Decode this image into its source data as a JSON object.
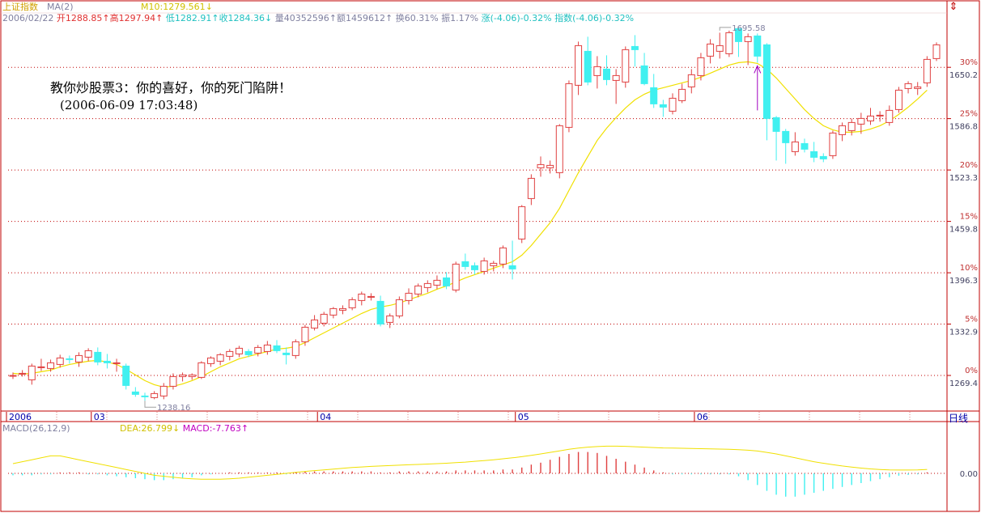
{
  "window": {
    "index_name": "上证指数",
    "indicator_main": "MA(2)",
    "ma_label": "M10:1279.561",
    "ma_arrow": "↓",
    "flip_icon": "flip-arrows-icon",
    "period_tab": "日线"
  },
  "quote_bar": {
    "date": "2006/02/22",
    "open": "开1288.85↑",
    "high": "高1297.94↑",
    "low": "低1282.91↑",
    "close": "收1284.36↓",
    "volume": "量40352596↑",
    "amount": "额1459612↑",
    "turnover": "换60.31%",
    "amplitude": "振1.17%",
    "change": "涨(-4.06)-0.32%",
    "index_change": "指数(-4.06)-0.32%"
  },
  "annotation": {
    "line1": "教你炒股票3：你的喜好，你的死门陷阱！",
    "line2": "(2006-06-09 17:03:48)"
  },
  "macd_bar": {
    "name": "MACD(26,12,9)",
    "dea": "DEA:26.799↓",
    "macd": "MACD:-7.763↑",
    "zero_label": "0.00"
  },
  "colors": {
    "up": "#e04040",
    "down": "#40f0f0",
    "ma_line": "#f0e000",
    "grid": "#c00000",
    "macd_pos": "#e04040",
    "macd_neg": "#40f0f0",
    "arrow": "#a000c0"
  },
  "chart_data": {
    "type": "candlestick",
    "title": "上证指数",
    "y_axis_labels": [
      1269.4,
      1332.9,
      1396.3,
      1459.8,
      1523.3,
      1586.8,
      1650.2
    ],
    "percent_labels": [
      "0%",
      "5%",
      "10%",
      "15%",
      "20%",
      "25%",
      "30%"
    ],
    "ylim": [
      1238,
      1712
    ],
    "x_axis_labels": [
      {
        "label": "2006",
        "index": 0
      },
      {
        "label": "03",
        "index": 9
      },
      {
        "label": "04",
        "index": 33
      },
      {
        "label": "05",
        "index": 54
      },
      {
        "label": "06",
        "index": 73
      }
    ],
    "annotations": [
      {
        "text": "1238.16",
        "index": 14,
        "price": 1238.16,
        "pos": "low"
      },
      {
        "text": "1695.58",
        "index": 75,
        "price": 1695.58,
        "pos": "high"
      }
    ],
    "arrow_marker_index": 79,
    "ohlc": [
      [
        1269.4,
        1273,
        1265,
        1269.4
      ],
      [
        1272,
        1276,
        1268,
        1272
      ],
      [
        1264,
        1284,
        1258,
        1281
      ],
      [
        1279,
        1290,
        1275,
        1280
      ],
      [
        1278,
        1289,
        1274,
        1285
      ],
      [
        1283,
        1295,
        1279,
        1291
      ],
      [
        1290,
        1294,
        1284,
        1289
      ],
      [
        1286,
        1298,
        1280,
        1294
      ],
      [
        1292,
        1303,
        1287,
        1300
      ],
      [
        1298,
        1304,
        1282,
        1286
      ],
      [
        1287,
        1296,
        1278,
        1285
      ],
      [
        1284,
        1290,
        1274,
        1285
      ],
      [
        1281,
        1284,
        1252,
        1257
      ],
      [
        1249,
        1255,
        1243,
        1246
      ],
      [
        1244,
        1248,
        1238.16,
        1243
      ],
      [
        1242,
        1250,
        1240,
        1247
      ],
      [
        1244,
        1260,
        1240,
        1256
      ],
      [
        1256,
        1272,
        1252,
        1268
      ],
      [
        1268,
        1273,
        1262,
        1270
      ],
      [
        1268,
        1272,
        1264,
        1270
      ],
      [
        1267,
        1287,
        1265,
        1285
      ],
      [
        1284,
        1293,
        1280,
        1291
      ],
      [
        1287,
        1297,
        1282,
        1295
      ],
      [
        1293,
        1302,
        1288,
        1299
      ],
      [
        1296,
        1306,
        1292,
        1303
      ],
      [
        1299,
        1302,
        1292,
        1295
      ],
      [
        1297,
        1307,
        1293,
        1304
      ],
      [
        1299,
        1312,
        1295,
        1307
      ],
      [
        1306,
        1313,
        1297,
        1300
      ],
      [
        1297,
        1304,
        1283,
        1295
      ],
      [
        1294,
        1314,
        1290,
        1311
      ],
      [
        1311,
        1332,
        1306,
        1329
      ],
      [
        1328,
        1344,
        1325,
        1338
      ],
      [
        1334,
        1348,
        1330,
        1345
      ],
      [
        1344,
        1354,
        1340,
        1352
      ],
      [
        1350,
        1356,
        1345,
        1352
      ],
      [
        1353,
        1366,
        1350,
        1363
      ],
      [
        1362,
        1373,
        1356,
        1370
      ],
      [
        1367,
        1371,
        1362,
        1367
      ],
      [
        1361,
        1368,
        1330,
        1333
      ],
      [
        1335,
        1346,
        1328,
        1343
      ],
      [
        1343,
        1367,
        1340,
        1363
      ],
      [
        1362,
        1377,
        1357,
        1371
      ],
      [
        1370,
        1383,
        1366,
        1380
      ],
      [
        1378,
        1387,
        1372,
        1383
      ],
      [
        1381,
        1393,
        1376,
        1387
      ],
      [
        1390,
        1397,
        1376,
        1380
      ],
      [
        1375,
        1410,
        1372,
        1407
      ],
      [
        1410,
        1420,
        1400,
        1404
      ],
      [
        1405,
        1409,
        1394,
        1400
      ],
      [
        1398,
        1415,
        1394,
        1411
      ],
      [
        1405,
        1411,
        1398,
        1408
      ],
      [
        1407,
        1430,
        1402,
        1427
      ],
      [
        1405,
        1436,
        1388,
        1401
      ],
      [
        1438,
        1480,
        1433,
        1478
      ],
      [
        1488,
        1518,
        1480,
        1513
      ],
      [
        1526,
        1540,
        1515,
        1530
      ],
      [
        1526,
        1535,
        1519,
        1529
      ],
      [
        1520,
        1580,
        1513,
        1578
      ],
      [
        1576,
        1634,
        1570,
        1630
      ],
      [
        1628,
        1682,
        1616,
        1677
      ],
      [
        1670,
        1688,
        1628,
        1632
      ],
      [
        1640,
        1664,
        1624,
        1651
      ],
      [
        1648,
        1665,
        1628,
        1635
      ],
      [
        1634,
        1648,
        1605,
        1640
      ],
      [
        1632,
        1676,
        1625,
        1672
      ],
      [
        1676,
        1690,
        1651,
        1672
      ],
      [
        1652,
        1668,
        1628,
        1630
      ],
      [
        1625,
        1642,
        1600,
        1605
      ],
      [
        1604,
        1610,
        1589,
        1601
      ],
      [
        1596,
        1618,
        1592,
        1612
      ],
      [
        1609,
        1630,
        1606,
        1623
      ],
      [
        1626,
        1648,
        1618,
        1641
      ],
      [
        1640,
        1668,
        1634,
        1662
      ],
      [
        1664,
        1685,
        1655,
        1679
      ],
      [
        1670,
        1693,
        1661,
        1677
      ],
      [
        1667,
        1695.58,
        1663,
        1693
      ],
      [
        1698,
        1700,
        1663,
        1682
      ],
      [
        1682,
        1692,
        1653,
        1688
      ],
      [
        1689,
        1692,
        1656,
        1664
      ],
      [
        1678,
        1680,
        1560,
        1587
      ],
      [
        1588,
        1590,
        1535,
        1571
      ],
      [
        1571,
        1574,
        1531,
        1557
      ],
      [
        1546,
        1570,
        1541,
        1558
      ],
      [
        1556,
        1562,
        1545,
        1549
      ],
      [
        1546,
        1558,
        1533,
        1539
      ],
      [
        1540,
        1544,
        1533,
        1537
      ],
      [
        1541,
        1572,
        1537,
        1569
      ],
      [
        1567,
        1582,
        1559,
        1578
      ],
      [
        1572,
        1587,
        1566,
        1582
      ],
      [
        1580,
        1594,
        1568,
        1587
      ],
      [
        1584,
        1600,
        1579,
        1590
      ],
      [
        1590,
        1596,
        1583,
        1591
      ],
      [
        1582,
        1603,
        1578,
        1597
      ],
      [
        1598,
        1626,
        1594,
        1622
      ],
      [
        1624,
        1633,
        1618,
        1630
      ],
      [
        1624,
        1632,
        1616,
        1626
      ],
      [
        1631,
        1664,
        1626,
        1660
      ],
      [
        1661,
        1681,
        1658,
        1678
      ]
    ],
    "ma": [
      1272,
      1271,
      1272,
      1274,
      1276,
      1280,
      1283,
      1285,
      1287,
      1288,
      1286,
      1283,
      1277,
      1270,
      1263,
      1258,
      1255,
      1256,
      1259,
      1263,
      1268,
      1274,
      1280,
      1285,
      1290,
      1293,
      1296,
      1299,
      1302,
      1303,
      1305,
      1310,
      1316,
      1322,
      1328,
      1334,
      1340,
      1346,
      1351,
      1354,
      1356,
      1359,
      1363,
      1367,
      1371,
      1376,
      1380,
      1385,
      1390,
      1394,
      1398,
      1402,
      1406,
      1410,
      1418,
      1430,
      1444,
      1458,
      1476,
      1498,
      1520,
      1540,
      1560,
      1575,
      1588,
      1600,
      1610,
      1617,
      1622,
      1625,
      1628,
      1631,
      1634,
      1638,
      1643,
      1648,
      1653,
      1656,
      1657,
      1655,
      1648,
      1637,
      1624,
      1611,
      1598,
      1587,
      1578,
      1573,
      1570,
      1570,
      1571,
      1574,
      1578,
      1584,
      1592,
      1601,
      1611,
      1622
    ],
    "macd_dif": [
      0.5,
      0.6,
      0.7,
      0.8,
      0.9,
      0.9,
      0.8,
      0.7,
      0.6,
      0.5,
      0.4,
      0.3,
      0.2,
      0.1,
      0.0,
      -0.1,
      -0.15,
      -0.2,
      -0.25,
      -0.28,
      -0.3,
      -0.3,
      -0.3,
      -0.28,
      -0.25,
      -0.2,
      -0.15,
      -0.1,
      -0.05,
      0.0,
      0.05,
      0.1,
      0.14,
      0.18,
      0.22,
      0.26,
      0.3,
      0.33,
      0.36,
      0.38,
      0.4,
      0.42,
      0.44,
      0.46,
      0.48,
      0.5,
      0.52,
      0.55,
      0.58,
      0.62,
      0.66,
      0.7,
      0.75,
      0.8,
      0.86,
      0.93,
      1.0,
      1.08,
      1.16,
      1.24,
      1.3,
      1.35,
      1.38,
      1.4,
      1.4,
      1.39,
      1.37,
      1.35,
      1.33,
      1.31,
      1.3,
      1.29,
      1.28,
      1.27,
      1.26,
      1.25,
      1.24,
      1.22,
      1.19,
      1.15,
      1.08,
      1.0,
      0.9,
      0.8,
      0.7,
      0.6,
      0.52,
      0.45,
      0.38,
      0.32,
      0.27,
      0.23,
      0.2,
      0.18,
      0.17,
      0.17,
      0.18,
      0.2
    ],
    "macd_hist": [
      -0.1,
      -0.1,
      -0.1,
      -0.05,
      -0.05,
      0.05,
      0.05,
      0.05,
      -0.05,
      -0.05,
      -0.1,
      -0.15,
      -0.2,
      -0.25,
      -0.3,
      -0.35,
      -0.35,
      -0.3,
      -0.25,
      -0.2,
      -0.1,
      -0.05,
      0.0,
      0.05,
      0.05,
      0.05,
      0.05,
      0.05,
      0.05,
      -0.05,
      0.05,
      0.1,
      0.1,
      0.1,
      0.1,
      0.1,
      0.1,
      0.1,
      0.1,
      0.05,
      0.05,
      0.1,
      0.1,
      0.1,
      0.1,
      0.1,
      0.1,
      0.15,
      0.15,
      0.15,
      0.15,
      0.15,
      0.2,
      0.2,
      0.3,
      0.45,
      0.55,
      0.7,
      0.85,
      1.0,
      1.1,
      1.1,
      1.05,
      0.9,
      0.75,
      0.6,
      0.45,
      0.3,
      0.15,
      0.05,
      -0.05,
      -0.05,
      -0.05,
      -0.05,
      -0.05,
      -0.05,
      -0.05,
      -0.15,
      -0.35,
      -0.6,
      -0.9,
      -1.1,
      -1.2,
      -1.2,
      -1.1,
      -1.0,
      -0.9,
      -0.8,
      -0.7,
      -0.6,
      -0.5,
      -0.4,
      -0.3,
      -0.2,
      -0.12,
      -0.08,
      -0.05,
      0.05
    ]
  }
}
